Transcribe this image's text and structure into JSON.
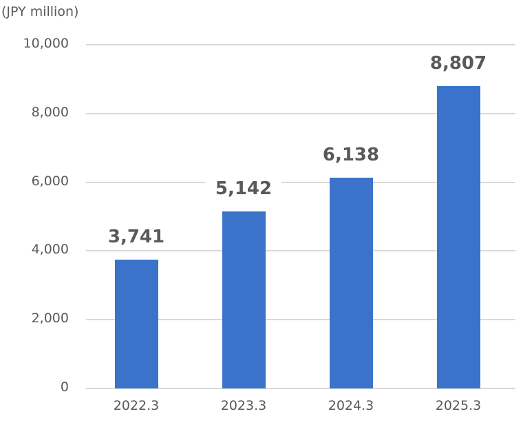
{
  "chart_data": {
    "type": "bar",
    "title": "",
    "unit_label": "(JPY million)",
    "xlabel": "",
    "ylabel": "JPY million",
    "categories": [
      "2022.3",
      "2023.3",
      "2024.3",
      "2025.3"
    ],
    "values": [
      3741,
      5142,
      6138,
      8807
    ],
    "value_labels": [
      "3,741",
      "5,142",
      "6,138",
      "8,807"
    ],
    "ylim": [
      0,
      10000
    ],
    "yticks": [
      0,
      2000,
      4000,
      6000,
      8000,
      10000
    ],
    "ytick_labels": [
      "0",
      "2,000",
      "4,000",
      "6,000",
      "8,000",
      "10,000"
    ],
    "grid": true,
    "legend": null,
    "bar_color": "#3a73c9"
  }
}
